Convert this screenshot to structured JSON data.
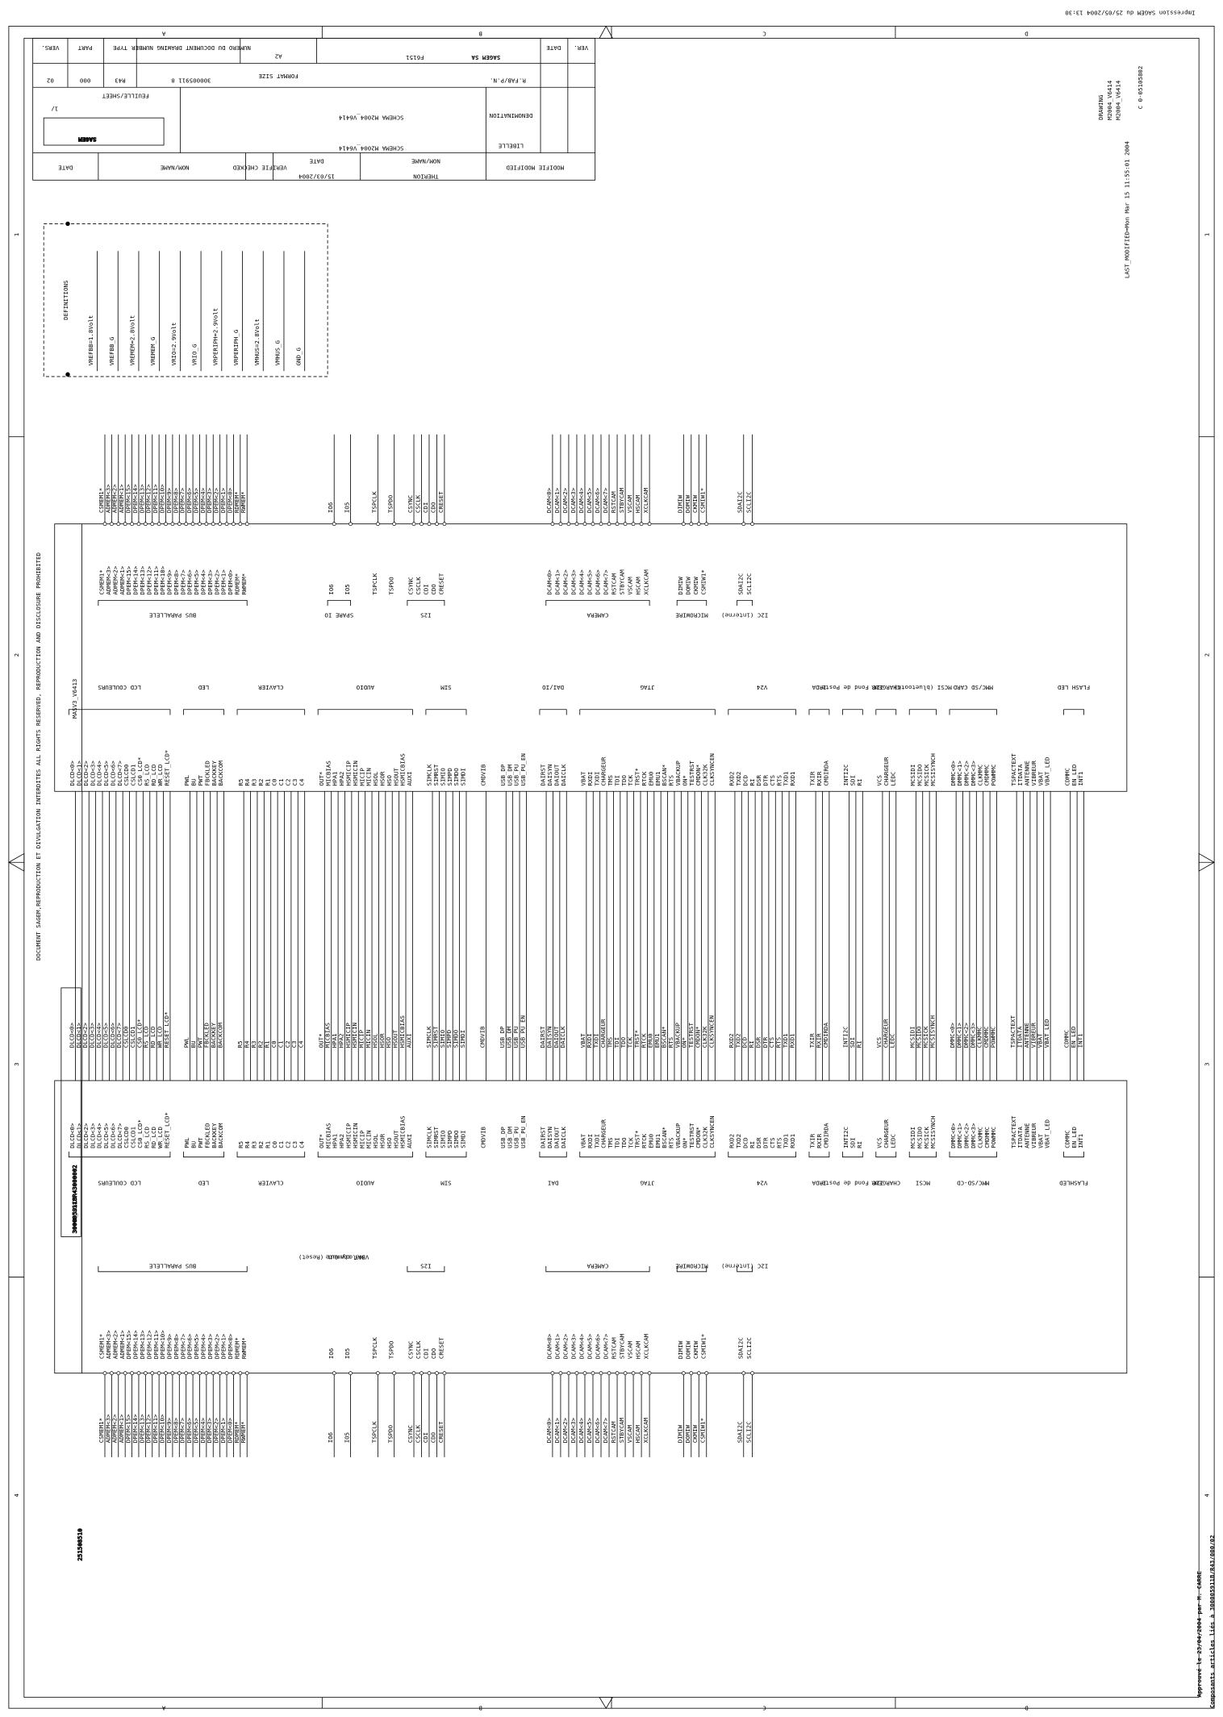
{
  "header": {
    "print_note": "Impression SAGEM du 25/05/2004 13:30"
  },
  "title_block": {
    "company": "SAGEM SA",
    "fab_label": "R.FAB/P.N.",
    "code": "F6151",
    "format": "A2",
    "format_label": "FORMAT SIZE",
    "drawing_number_label": "NUMERO DU DOCUMENT DRAWING NUMBER",
    "drawing_number": "300005911 8",
    "type_label": "TYPE",
    "type": "R43",
    "part_label": "PART",
    "part": "000",
    "version_label": "VERS.",
    "version": "02",
    "sheet_label": "FEUILLE/SHEET",
    "sheet": "1/",
    "logo": "SAGEM",
    "denomination_label": "DENOMINATION",
    "denomination": "SCHEMA M2004_V6414",
    "libelle_label": "LIBELLE",
    "libelle": "SCHEMA M2004_V6414",
    "modified_label": "MODIFIE MODIFIED",
    "name_label": "NOM/NAME",
    "modified_by": "THERION",
    "date_label": "DATE",
    "date": "15/03/2004",
    "checked_label": "VERIFIE CHECKED",
    "rev_label": "VER."
  },
  "border": {
    "columns": [
      "A",
      "B",
      "C",
      "D"
    ],
    "rows": [
      "1",
      "2",
      "3",
      "4"
    ]
  },
  "notice": "DOCUMENT SAGEM,REPRODUCTION ET DIVULGATION INTERDITES     ALL RIGHTS RESERVED, REPRODUCTION AND DISCLOSURE PROHIBITED",
  "part_number": "251508510",
  "document_ref": "3000059118R43000002",
  "definitions": {
    "title": "DEFINITIONS",
    "items": [
      "VREFBB=1.8Volt",
      "VREFBB_G",
      "VREMEM=2.8Volt",
      "VREMEM_G",
      "VRIO=2.9Volt",
      "VRIO_G",
      "VRPERIPH=2.9Volt",
      "VRPERIPH_G",
      "VMHUS=2.8Volt",
      "VMHUS_G",
      "GND_G"
    ]
  },
  "modules": {
    "masv3": "MASV3_V6413",
    "mmi": "MMI_V6413"
  },
  "bus_groups": [
    {
      "masv3": "LCD COULEURS",
      "mmi": "LCD COULEURS",
      "signals": [
        "DLCD<0>",
        "DLCD<1>",
        "DLCD<2>",
        "DLCD<3>",
        "DLCD<4>",
        "DLCD<5>",
        "DLCD<6>",
        "DLCD<7>",
        "CSLCD0",
        "CSLCD1",
        "CS0_LCD*",
        "RS_LCD",
        "RD_LCD",
        "WR_LCD",
        "RESET_LCD*"
      ]
    },
    {
      "masv3": "LED",
      "mmi": "LED",
      "signals": [
        "PWL",
        "BU",
        "PWT",
        "FBCKLED",
        "BACKKEY",
        "BACKCOM"
      ]
    },
    {
      "masv3": "CLAVIER",
      "mmi": "CLAVIER",
      "signals": [
        "R5",
        "R4",
        "R3",
        "R2",
        "R1",
        "C0",
        "C1",
        "C2",
        "C3",
        "C4"
      ]
    },
    {
      "masv3": "AUDIO",
      "mmi": "AUDIO",
      "signals": [
        "OUT*",
        "MICBIAS",
        "HPA1",
        "HPA2",
        "HSMICIP",
        "HSMICIN",
        "MICIP",
        "MICIN",
        "HSOL",
        "HSOR",
        "HSO",
        "HSOUT",
        "HSMICBIAS",
        "AUXI"
      ]
    },
    {
      "masv3": "SIM",
      "mmi": "SIM",
      "signals": [
        "SIMCLK",
        "SIMRST",
        "SIMIO",
        "SIMPD",
        "SIMDO",
        "SIMDI"
      ]
    },
    {
      "signals": [
        "CMDVIB"
      ]
    },
    {
      "signals": [
        "USB_DP",
        "USB_DM",
        "USB_PU",
        "USB_PU_EN"
      ]
    },
    {
      "masv3": "DAI/IO",
      "mmi": "DAI",
      "signals": [
        "DAIRST",
        "DAISYN",
        "DAIOUT",
        "DAICLK"
      ]
    },
    {
      "masv3": "JTAG",
      "mmi": "JTAG",
      "signals": [
        "VBAT",
        "RXDI",
        "TXDI",
        "CHARGEUR",
        "TMS",
        "TDI",
        "TDO",
        "TCK",
        "TRST*",
        "RTCK",
        "EMU0",
        "EMU1",
        "BSCAN*",
        "RTS",
        "VBACKUP",
        "ON*",
        "TESTRST",
        "CMDON*",
        "CLK32K",
        "CLKSYNCEN"
      ]
    },
    {
      "masv3": "V24",
      "mmi": "V24",
      "signals": [
        "RXD2",
        "TXD2",
        "DCD",
        "RI",
        "DSR",
        "DTR",
        "CTS",
        "RTS",
        "TXD1",
        "RXD1"
      ]
    },
    {
      "masv3": "IRDA",
      "mmi": "IRDA",
      "signals": [
        "TXIR",
        "RXIR",
        "CMDIRDA"
      ]
    },
    {
      "masv3": "I2C Fond de Poste",
      "mmi": "I2C Fond de Poste",
      "signals": [
        "INTI2C",
        "SDI",
        "RI"
      ]
    },
    {
      "masv3": "CHARGEUR",
      "mmi": "CHARGEUR",
      "signals": [
        "VCS",
        "CHARGEUR",
        "LEDC"
      ]
    },
    {
      "masv3": "MCSI (bluetooth)",
      "mmi": "MCSI",
      "signals": [
        "MCSIDI",
        "MCSIDO",
        "MCSICK",
        "MCSISYNCH"
      ]
    },
    {
      "masv3": "MMC/SD CARD",
      "mmi": "MMC/SD-CD",
      "signals": [
        "DMMC<0>",
        "DMMC<1>",
        "DMMC<2>",
        "DMMC<3>",
        "CLKMMC",
        "CMDMMC",
        "POWMMC"
      ]
    },
    {
      "signals": [
        "TSPACTEXT",
        "ITDATA",
        "ANTENNE",
        "VIBREUR",
        "VBAT",
        "VBAT_LED"
      ]
    },
    {
      "masv3": "FLASH LED",
      "mmi": "FLASHLED",
      "signals": [
        "CDMMC",
        "EN_LED",
        "INT1"
      ]
    }
  ],
  "upper_groups": [
    {
      "masv3": "BUS PARALLELE",
      "mmi": "BUS PARALLELE",
      "signals": [
        "CSMEM1*",
        "ADMEM<3>",
        "ADMEM<2>",
        "ADMEM<1>",
        "DPEM<15>",
        "DPEM<14>",
        "DPEM<13>",
        "DPEM<12>",
        "DPEM<11>",
        "DPEM<10>",
        "DPEM<9>",
        "DPEM<8>",
        "DPEM<7>",
        "DPEM<6>",
        "DPEM<5>",
        "DPEM<4>",
        "DPEM<3>",
        "DPEM<2>",
        "DPEM<1>",
        "DPEM<0>",
        "RDMEM*",
        "RWMEM*"
      ]
    },
    {
      "masv3": "SPARE IO",
      "signals": [
        "IO6",
        "IO5"
      ],
      "mmi_notes": [
        "Melody Out (Reset)",
        "VBAT commute"
      ]
    },
    {
      "signals": [
        "TSPCLK",
        "TSPDO"
      ]
    },
    {
      "masv3": "I2S",
      "mmi": "I2S",
      "signals": [
        "CSYNC",
        "CSCLK",
        "CDI",
        "CDO",
        "CRESET"
      ]
    },
    {
      "masv3": "CAMERA",
      "mmi": "CAMERA",
      "signals": [
        "DCAM<0>",
        "DCAM<1>",
        "DCAM<2>",
        "DCAM<3>",
        "DCAM<4>",
        "DCAM<5>",
        "DCAM<6>",
        "DCAM<7>",
        "RSTCAM",
        "STBYCAM",
        "VSCAM",
        "HSCAM",
        "XCLKCAM"
      ]
    },
    {
      "masv3": "MICROWIRE",
      "mmi": "MICROWIRE",
      "signals": [
        "DIMIW",
        "DOMIW",
        "CKMIW",
        "CSMIW1*"
      ]
    },
    {
      "masv3": "I2C (interne)",
      "mmi": "I2C (interne)",
      "signals": [
        "SDAI2C",
        "SCLI2C"
      ]
    }
  ],
  "side_notes": {
    "sheet_code": "C 0-05105802",
    "drawing_info": [
      "DRAWING",
      "M2004_V6414",
      "M2004_V6414"
    ],
    "last_modified": "LAST_MODIFIED=Mon Mar 15 11:55:01 2004"
  },
  "footer": {
    "approved": "Approuvé le 23/04/2004 par M. CARRE",
    "components": "Composants articles liés à 300005911B/R43/000/02"
  }
}
